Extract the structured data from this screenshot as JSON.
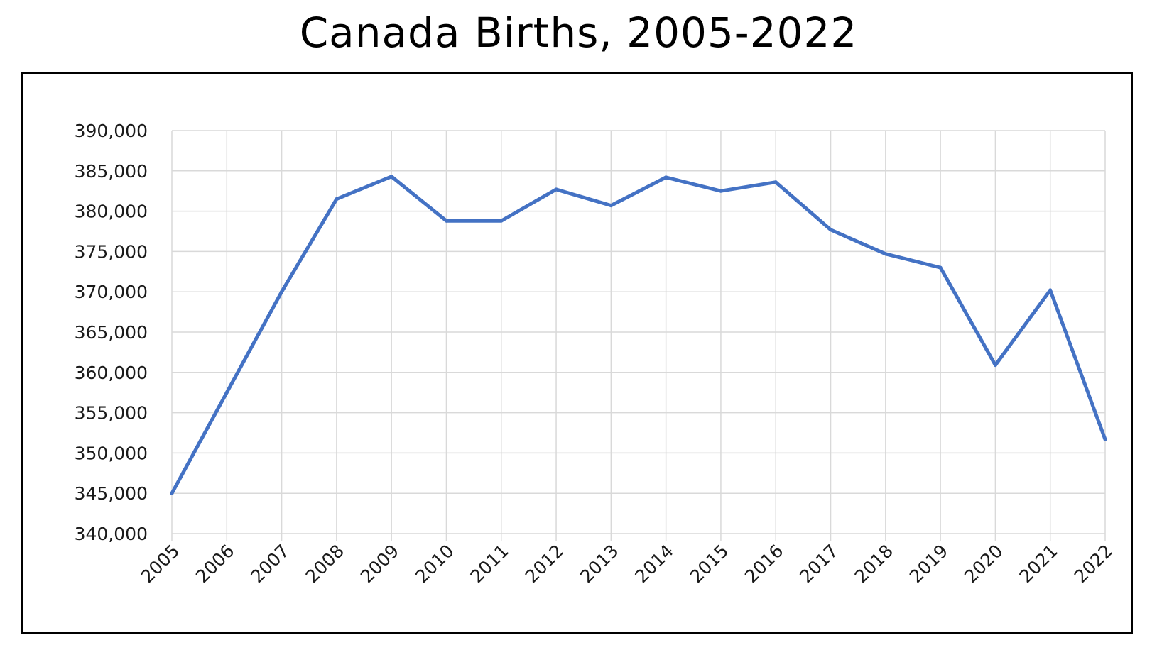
{
  "title": "Canada Births, 2005-2022",
  "colors": {
    "line": "#4472C4",
    "grid": "#d9d9d9",
    "frame": "#000000"
  },
  "chart_data": {
    "type": "line",
    "title": "Canada Births, 2005-2022",
    "xlabel": "",
    "ylabel": "",
    "grid": true,
    "legend": "none",
    "ylim": [
      340000,
      390000
    ],
    "y_ticks": [
      "340,000",
      "345,000",
      "350,000",
      "355,000",
      "360,000",
      "365,000",
      "370,000",
      "375,000",
      "380,000",
      "385,000",
      "390,000"
    ],
    "categories": [
      "2005",
      "2006",
      "2007",
      "2008",
      "2009",
      "2010",
      "2011",
      "2012",
      "2013",
      "2014",
      "2015",
      "2016",
      "2017",
      "2018",
      "2019",
      "2020",
      "2021",
      "2022"
    ],
    "series": [
      {
        "values": [
          345000,
          357500,
          370000,
          381500,
          384300,
          378800,
          378800,
          382700,
          380700,
          384200,
          382500,
          383600,
          377700,
          374700,
          373000,
          360900,
          370200,
          351700
        ]
      }
    ]
  }
}
